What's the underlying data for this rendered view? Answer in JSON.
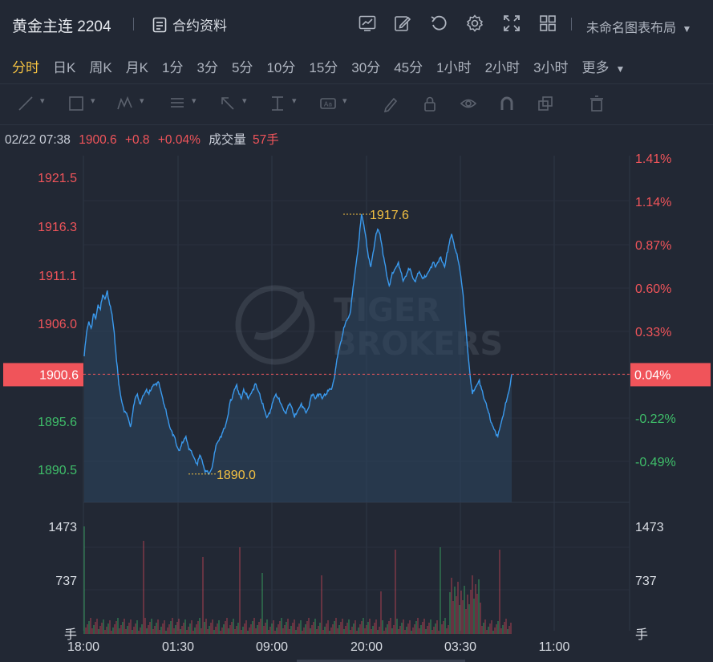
{
  "header": {
    "title": "黄金主连 2204",
    "contract_info_label": "合约资料",
    "layout_label": "未命名图表布局",
    "icons": [
      "chart-template-icon",
      "edit-icon",
      "undo-icon",
      "settings-icon",
      "fullscreen-icon",
      "grid-layout-icon",
      "dropdown-arrow-icon"
    ]
  },
  "periods": {
    "items": [
      "分时",
      "日K",
      "周K",
      "月K",
      "1分",
      "3分",
      "5分",
      "10分",
      "15分",
      "30分",
      "45分",
      "1小时",
      "2小时",
      "3小时"
    ],
    "more_label": "更多",
    "active": "分时"
  },
  "drawing_tools": [
    "line-tool-icon",
    "rectangle-tool-icon",
    "wave-tool-icon",
    "fibonacci-tool-icon",
    "arrow-tool-icon",
    "measure-tool-icon",
    "text-tool-icon",
    "pencil-icon",
    "lock-icon",
    "eye-icon",
    "magnet-icon",
    "layers-icon",
    "trash-icon"
  ],
  "info": {
    "datetime": "02/22 07:38",
    "price": "1900.6",
    "change": "+0.8",
    "change_pct": "+0.04%",
    "volume_label": "成交量",
    "volume": "57手"
  },
  "chart_data": {
    "type": "line",
    "price_axis": {
      "ticks": [
        "1921.5",
        "1916.3",
        "1911.1",
        "1906.0",
        "1900.6",
        "1895.6",
        "1890.5"
      ],
      "ylim": [
        1887,
        1924.5
      ]
    },
    "pct_axis": {
      "ticks": [
        "1.41%",
        "1.14%",
        "0.87%",
        "0.60%",
        "0.33%",
        "0.04%",
        "-0.22%",
        "-0.49%"
      ]
    },
    "current_price": 1900.6,
    "x_ticks": [
      "18:00",
      "01:30",
      "09:00",
      "20:00",
      "03:30",
      "11:00"
    ],
    "annotations": [
      {
        "label": "1917.6",
        "value": 1917.6
      },
      {
        "label": "1890.0",
        "value": 1890.0
      }
    ],
    "volume_axis": {
      "ticks": [
        "1473",
        "737"
      ],
      "unit_label": "手",
      "max": 1800
    },
    "series": [
      {
        "values": [
          1902.5,
          1905.0,
          1906.2,
          1905.5,
          1907.0,
          1906.5,
          1908.0,
          1907.5,
          1909.0,
          1908.6,
          1909.5,
          1908.0,
          1907.0,
          1905.0,
          1902.0,
          1899.5,
          1898.0,
          1897.0,
          1896.5,
          1896.0,
          1895.0,
          1896.5,
          1898.0,
          1898.5,
          1897.5,
          1898.0,
          1898.5,
          1899.0,
          1898.5,
          1899.0,
          1899.5,
          1899.6,
          1899.8,
          1899.0,
          1898.0,
          1897.0,
          1896.0,
          1895.0,
          1894.5,
          1894.0,
          1893.0,
          1892.5,
          1893.0,
          1893.5,
          1894.0,
          1893.0,
          1892.5,
          1892.0,
          1891.5,
          1891.0,
          1892.0,
          1891.5,
          1890.5,
          1890.3,
          1890.0,
          1890.5,
          1891.5,
          1893.0,
          1893.5,
          1894.0,
          1894.5,
          1895.0,
          1896.0,
          1897.5,
          1898.0,
          1899.0,
          1899.5,
          1898.5,
          1898.0,
          1899.0,
          1898.5,
          1898.0,
          1898.5,
          1899.0,
          1899.6,
          1899.0,
          1898.5,
          1897.5,
          1896.8,
          1896.0,
          1896.5,
          1897.0,
          1898.0,
          1898.5,
          1898.0,
          1897.5,
          1897.0,
          1896.5,
          1897.0,
          1897.5,
          1897.0,
          1896.0,
          1896.5,
          1897.0,
          1897.5,
          1897.0,
          1896.5,
          1897.0,
          1898.0,
          1898.5,
          1898.0,
          1898.5,
          1898.5,
          1898.0,
          1898.5,
          1898.5,
          1899.0,
          1899.0,
          1900.0,
          1901.5,
          1903.0,
          1904.0,
          1905.0,
          1906.0,
          1906.5,
          1907.0,
          1909.0,
          1911.0,
          1913.0,
          1915.0,
          1917.6,
          1916.5,
          1915.0,
          1913.0,
          1912.0,
          1913.5,
          1915.0,
          1916.0,
          1915.5,
          1914.0,
          1912.5,
          1911.0,
          1910.0,
          1911.0,
          1911.5,
          1912.0,
          1912.5,
          1911.5,
          1910.5,
          1911.0,
          1911.5,
          1911.8,
          1911.0,
          1910.5,
          1911.0,
          1911.5,
          1911.0,
          1910.8,
          1911.0,
          1911.5,
          1912.0,
          1912.5,
          1912.0,
          1912.5,
          1913.0,
          1912.5,
          1912.0,
          1913.5,
          1914.5,
          1915.5,
          1914.5,
          1913.5,
          1912.5,
          1911.0,
          1909.0,
          1906.0,
          1903.0,
          1900.5,
          1898.5,
          1899.0,
          1899.5,
          1900.0,
          1899.0,
          1898.0,
          1897.5,
          1896.5,
          1895.5,
          1895.0,
          1894.5,
          1894.0,
          1895.0,
          1896.0,
          1897.0,
          1898.0,
          1899.0,
          1900.6
        ]
      }
    ]
  }
}
